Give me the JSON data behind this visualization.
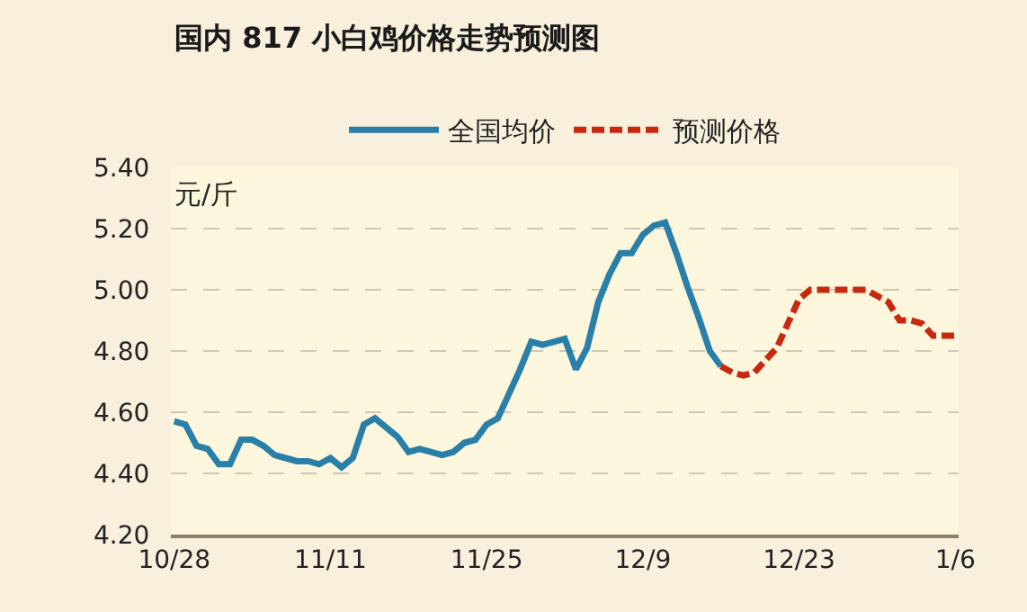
{
  "chart_data": {
    "type": "line",
    "title": "国内 817 小白鸡价格走势预测图",
    "ylabel": "元/斤",
    "categories": [
      "10/28",
      null,
      null,
      null,
      null,
      null,
      null,
      null,
      null,
      null,
      null,
      null,
      null,
      null,
      "11/11",
      null,
      null,
      null,
      null,
      null,
      null,
      null,
      null,
      null,
      null,
      null,
      null,
      null,
      "11/25",
      null,
      null,
      null,
      null,
      null,
      null,
      null,
      null,
      null,
      null,
      null,
      null,
      null,
      "12/9",
      null,
      null,
      null,
      null,
      null,
      null,
      null,
      null,
      null,
      null,
      null,
      null,
      null,
      "12/23",
      null,
      null,
      null,
      null,
      null,
      null,
      null,
      null,
      null,
      null,
      null,
      null,
      null,
      "1/6"
    ],
    "ylim": [
      4.2,
      5.4
    ],
    "yticks": [
      {
        "value": 4.2,
        "label": "4.20"
      },
      {
        "value": 4.4,
        "label": "4.40"
      },
      {
        "value": 4.6,
        "label": "4.60"
      },
      {
        "value": 4.8,
        "label": "4.80"
      },
      {
        "value": 5.0,
        "label": "5.00"
      },
      {
        "value": 5.2,
        "label": "5.20"
      },
      {
        "value": 5.4,
        "label": "5.40"
      }
    ],
    "grid": "y",
    "legend": "top",
    "marker": "none",
    "series": [
      {
        "name": "全国均价",
        "color": "#2a7fa8",
        "line_style": "solid",
        "values": [
          4.57,
          4.56,
          4.49,
          4.48,
          4.43,
          4.43,
          4.51,
          4.51,
          4.49,
          4.46,
          4.45,
          4.44,
          4.44,
          4.43,
          4.45,
          4.42,
          4.45,
          4.56,
          4.58,
          4.55,
          4.52,
          4.47,
          4.48,
          4.47,
          4.46,
          4.47,
          4.5,
          4.51,
          4.56,
          4.58,
          4.66,
          4.74,
          4.83,
          4.82,
          4.83,
          4.84,
          4.74,
          4.81,
          4.96,
          5.05,
          5.12,
          5.12,
          5.18,
          5.21,
          5.22,
          5.12,
          5.01,
          4.91,
          4.8,
          4.75,
          null,
          null,
          null,
          null,
          null,
          null,
          null,
          null,
          null,
          null,
          null,
          null,
          null,
          null,
          null,
          null,
          null,
          null,
          null,
          null,
          null
        ]
      },
      {
        "name": "预测价格",
        "color": "#c8280e",
        "line_style": "dashed",
        "values": [
          null,
          null,
          null,
          null,
          null,
          null,
          null,
          null,
          null,
          null,
          null,
          null,
          null,
          null,
          null,
          null,
          null,
          null,
          null,
          null,
          null,
          null,
          null,
          null,
          null,
          null,
          null,
          null,
          null,
          null,
          null,
          null,
          null,
          null,
          null,
          null,
          null,
          null,
          null,
          null,
          null,
          null,
          null,
          null,
          null,
          null,
          null,
          null,
          null,
          4.75,
          4.73,
          4.72,
          4.73,
          4.77,
          4.81,
          4.89,
          4.97,
          5.0,
          5.0,
          5.0,
          5.0,
          5.0,
          5.0,
          4.98,
          4.96,
          4.9,
          4.9,
          4.89,
          4.85,
          4.85,
          4.85
        ]
      }
    ]
  }
}
